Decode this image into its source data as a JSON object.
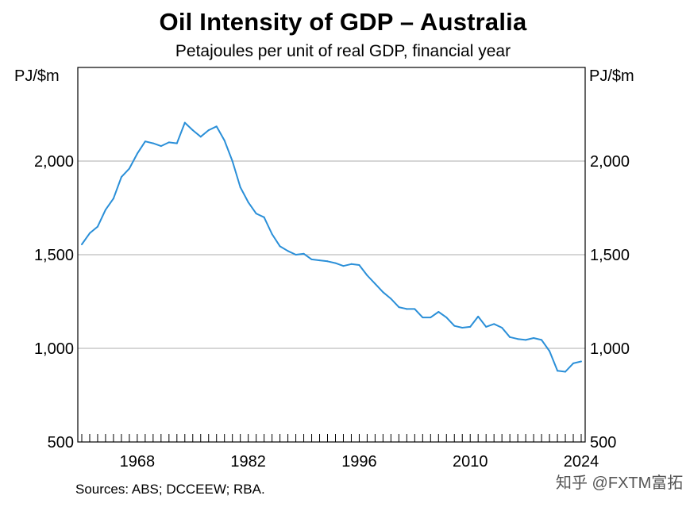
{
  "chart_data": {
    "type": "line",
    "title": "Oil Intensity of GDP – Australia",
    "subtitle": "Petajoules per unit of real GDP, financial year",
    "ylabel_left": "PJ/$m",
    "ylabel_right": "PJ/$m",
    "ylim": [
      500,
      2500
    ],
    "yticks": [
      500,
      1000,
      1500,
      2000
    ],
    "ytick_labels": [
      "500",
      "1,000",
      "1,500",
      "2,000"
    ],
    "xlim": [
      1961,
      2025
    ],
    "xticks": [
      1968,
      1982,
      1996,
      2010,
      2024
    ],
    "xtick_labels": [
      "1968",
      "1982",
      "1996",
      "2010",
      "2024"
    ],
    "grid": true,
    "series": [
      {
        "name": "",
        "color": "#2a8fd8",
        "x": [
          1961,
          1962,
          1963,
          1964,
          1965,
          1966,
          1967,
          1968,
          1969,
          1970,
          1971,
          1972,
          1973,
          1974,
          1975,
          1976,
          1977,
          1978,
          1979,
          1980,
          1981,
          1982,
          1983,
          1984,
          1985,
          1986,
          1987,
          1988,
          1989,
          1990,
          1991,
          1992,
          1993,
          1994,
          1995,
          1996,
          1997,
          1998,
          1999,
          2000,
          2001,
          2002,
          2003,
          2004,
          2005,
          2006,
          2007,
          2008,
          2009,
          2010,
          2011,
          2012,
          2013,
          2014,
          2015,
          2016,
          2017,
          2018,
          2019,
          2020,
          2021,
          2022,
          2023,
          2024
        ],
        "values": [
          1555,
          1615,
          1650,
          1740,
          1800,
          1915,
          1960,
          2040,
          2105,
          2095,
          2080,
          2100,
          2095,
          2205,
          2165,
          2130,
          2165,
          2185,
          2110,
          2000,
          1860,
          1780,
          1720,
          1700,
          1610,
          1545,
          1520,
          1500,
          1505,
          1475,
          1470,
          1465,
          1455,
          1440,
          1450,
          1445,
          1390,
          1345,
          1300,
          1265,
          1220,
          1210,
          1210,
          1165,
          1165,
          1195,
          1165,
          1120,
          1110,
          1115,
          1170,
          1115,
          1130,
          1110,
          1060,
          1050,
          1045,
          1055,
          1045,
          985,
          880,
          875,
          920,
          930
        ]
      }
    ]
  },
  "source": "Sources: ABS; DCCEEW; RBA.",
  "watermark": "知乎 @FXTM富拓"
}
